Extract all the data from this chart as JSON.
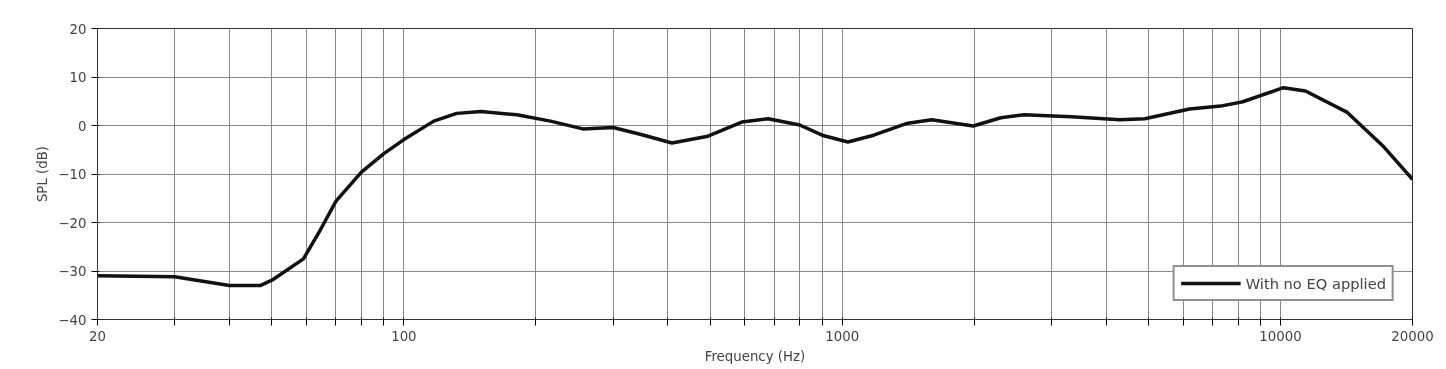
{
  "chart_data": {
    "type": "line",
    "xlabel": "Frequency (Hz)",
    "ylabel": "SPL (dB)",
    "log": "x",
    "grid": true,
    "legend": "bottom right",
    "line_style": "solid",
    "marker": "none",
    "xlim": [
      20,
      20000
    ],
    "ylim": [
      -40,
      20
    ],
    "xticks": [
      20,
      {
        "value": 30,
        "label": null
      },
      {
        "value": 40,
        "label": null
      },
      {
        "value": 50,
        "label": null
      },
      {
        "value": 60,
        "label": null
      },
      {
        "value": 70,
        "label": null
      },
      {
        "value": 80,
        "label": null
      },
      {
        "value": 90,
        "label": null
      },
      100,
      {
        "value": 200,
        "label": null
      },
      {
        "value": 300,
        "label": null
      },
      {
        "value": 400,
        "label": null
      },
      {
        "value": 500,
        "label": null
      },
      {
        "value": 600,
        "label": null
      },
      {
        "value": 700,
        "label": null
      },
      {
        "value": 800,
        "label": null
      },
      {
        "value": 900,
        "label": null
      },
      1000,
      {
        "value": 2000,
        "label": null
      },
      {
        "value": 3000,
        "label": null
      },
      {
        "value": 4000,
        "label": null
      },
      {
        "value": 5000,
        "label": null
      },
      {
        "value": 6000,
        "label": null
      },
      {
        "value": 7000,
        "label": null
      },
      {
        "value": 8000,
        "label": null
      },
      {
        "value": 9000,
        "label": null
      },
      10000,
      20000
    ],
    "yticks": [
      -40,
      -30,
      -20,
      -10,
      0,
      10,
      20
    ],
    "x": [
      20,
      30,
      40,
      47,
      50,
      59,
      64.5,
      70,
      80,
      90,
      100,
      117,
      132,
      150,
      181,
      216,
      256,
      300,
      346,
      409,
      494,
      590,
      678,
      800,
      900,
      1030,
      1180,
      1400,
      1600,
      1990,
      2300,
      2600,
      3330,
      4300,
      4900,
      6200,
      7300,
      8200,
      10150,
      11400,
      14200,
      17200,
      20000
    ],
    "series": [
      {
        "name": "With no EQ applied",
        "color": "#111111",
        "values": [
          -31.0,
          -31.2,
          -33.0,
          -33.0,
          -31.9,
          -27.5,
          -21.5,
          -15.6,
          -9.6,
          -5.8,
          -2.9,
          0.9,
          2.5,
          2.9,
          2.2,
          0.9,
          -0.7,
          -0.4,
          -1.8,
          -3.6,
          -2.2,
          0.7,
          1.4,
          0.1,
          -2.0,
          -3.4,
          -2.0,
          0.4,
          1.2,
          -0.1,
          1.6,
          2.2,
          1.8,
          1.2,
          1.4,
          3.4,
          4.0,
          4.9,
          7.8,
          7.1,
          2.7,
          -4.4,
          -11.1
        ]
      }
    ]
  }
}
